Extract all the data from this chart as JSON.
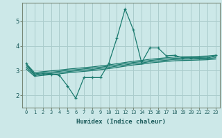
{
  "xlabel": "Humidex (Indice chaleur)",
  "background_color": "#cce8e8",
  "grid_color": "#aacccc",
  "line_color": "#1a7a6e",
  "xlim": [
    -0.5,
    23.5
  ],
  "ylim": [
    1.5,
    5.75
  ],
  "yticks": [
    2,
    3,
    4,
    5
  ],
  "xticks": [
    0,
    1,
    2,
    3,
    4,
    5,
    6,
    7,
    8,
    9,
    10,
    11,
    12,
    13,
    14,
    15,
    16,
    17,
    18,
    19,
    20,
    21,
    22,
    23
  ],
  "main_x": [
    0,
    1,
    2,
    3,
    4,
    5,
    6,
    7,
    8,
    9,
    10,
    11,
    12,
    13,
    14,
    15,
    16,
    17,
    18,
    19,
    20,
    21,
    22,
    23
  ],
  "main_y": [
    3.28,
    2.82,
    2.88,
    2.85,
    2.82,
    2.38,
    1.88,
    2.72,
    2.72,
    2.72,
    3.28,
    4.32,
    5.5,
    4.65,
    3.32,
    3.92,
    3.92,
    3.6,
    3.62,
    3.52,
    3.52,
    3.5,
    3.5,
    3.62
  ],
  "band_lines": [
    [
      3.28,
      2.92,
      2.96,
      2.99,
      3.02,
      3.06,
      3.09,
      3.12,
      3.15,
      3.19,
      3.23,
      3.28,
      3.33,
      3.38,
      3.41,
      3.46,
      3.49,
      3.52,
      3.55,
      3.56,
      3.57,
      3.58,
      3.59,
      3.62
    ],
    [
      3.2,
      2.87,
      2.91,
      2.94,
      2.97,
      3.01,
      3.04,
      3.07,
      3.1,
      3.14,
      3.18,
      3.23,
      3.28,
      3.33,
      3.36,
      3.41,
      3.44,
      3.47,
      3.5,
      3.51,
      3.52,
      3.53,
      3.54,
      3.57
    ],
    [
      3.13,
      2.82,
      2.86,
      2.89,
      2.92,
      2.96,
      2.99,
      3.02,
      3.05,
      3.09,
      3.13,
      3.18,
      3.23,
      3.28,
      3.31,
      3.36,
      3.39,
      3.42,
      3.45,
      3.46,
      3.47,
      3.48,
      3.49,
      3.52
    ],
    [
      3.06,
      2.77,
      2.81,
      2.84,
      2.87,
      2.91,
      2.94,
      2.97,
      3.0,
      3.04,
      3.08,
      3.13,
      3.18,
      3.23,
      3.26,
      3.31,
      3.34,
      3.37,
      3.4,
      3.41,
      3.42,
      3.43,
      3.44,
      3.47
    ]
  ],
  "xlabel_fontsize": 6.5,
  "xtick_fontsize": 5.0,
  "ytick_fontsize": 6.5
}
